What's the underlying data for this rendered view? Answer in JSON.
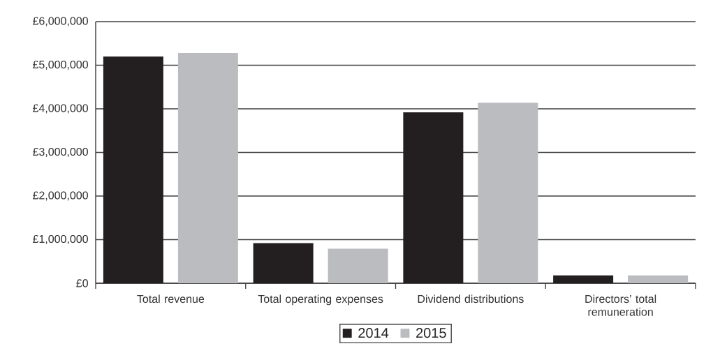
{
  "chart_data": {
    "type": "bar",
    "categories": [
      "Total revenue",
      "Total operating expenses",
      "Dividend distributions",
      "Directors’ total remuneration"
    ],
    "series": [
      {
        "name": "2014",
        "color": "#231f20",
        "values": [
          5200000,
          920000,
          3920000,
          180000
        ]
      },
      {
        "name": "2015",
        "color": "#bbbcbf",
        "values": [
          5280000,
          790000,
          4140000,
          180000
        ]
      }
    ],
    "ylim": [
      0,
      6000000
    ],
    "yticks": [
      {
        "value": 0,
        "label": "£0"
      },
      {
        "value": 1000000,
        "label": "£1,000,000"
      },
      {
        "value": 2000000,
        "label": "£2,000,000"
      },
      {
        "value": 3000000,
        "label": "£3,000,000"
      },
      {
        "value": 4000000,
        "label": "£4,000,000"
      },
      {
        "value": 5000000,
        "label": "£5,000,000"
      },
      {
        "value": 6000000,
        "label": "£6,000,000"
      }
    ],
    "grid": "y",
    "legend": "bottom"
  }
}
